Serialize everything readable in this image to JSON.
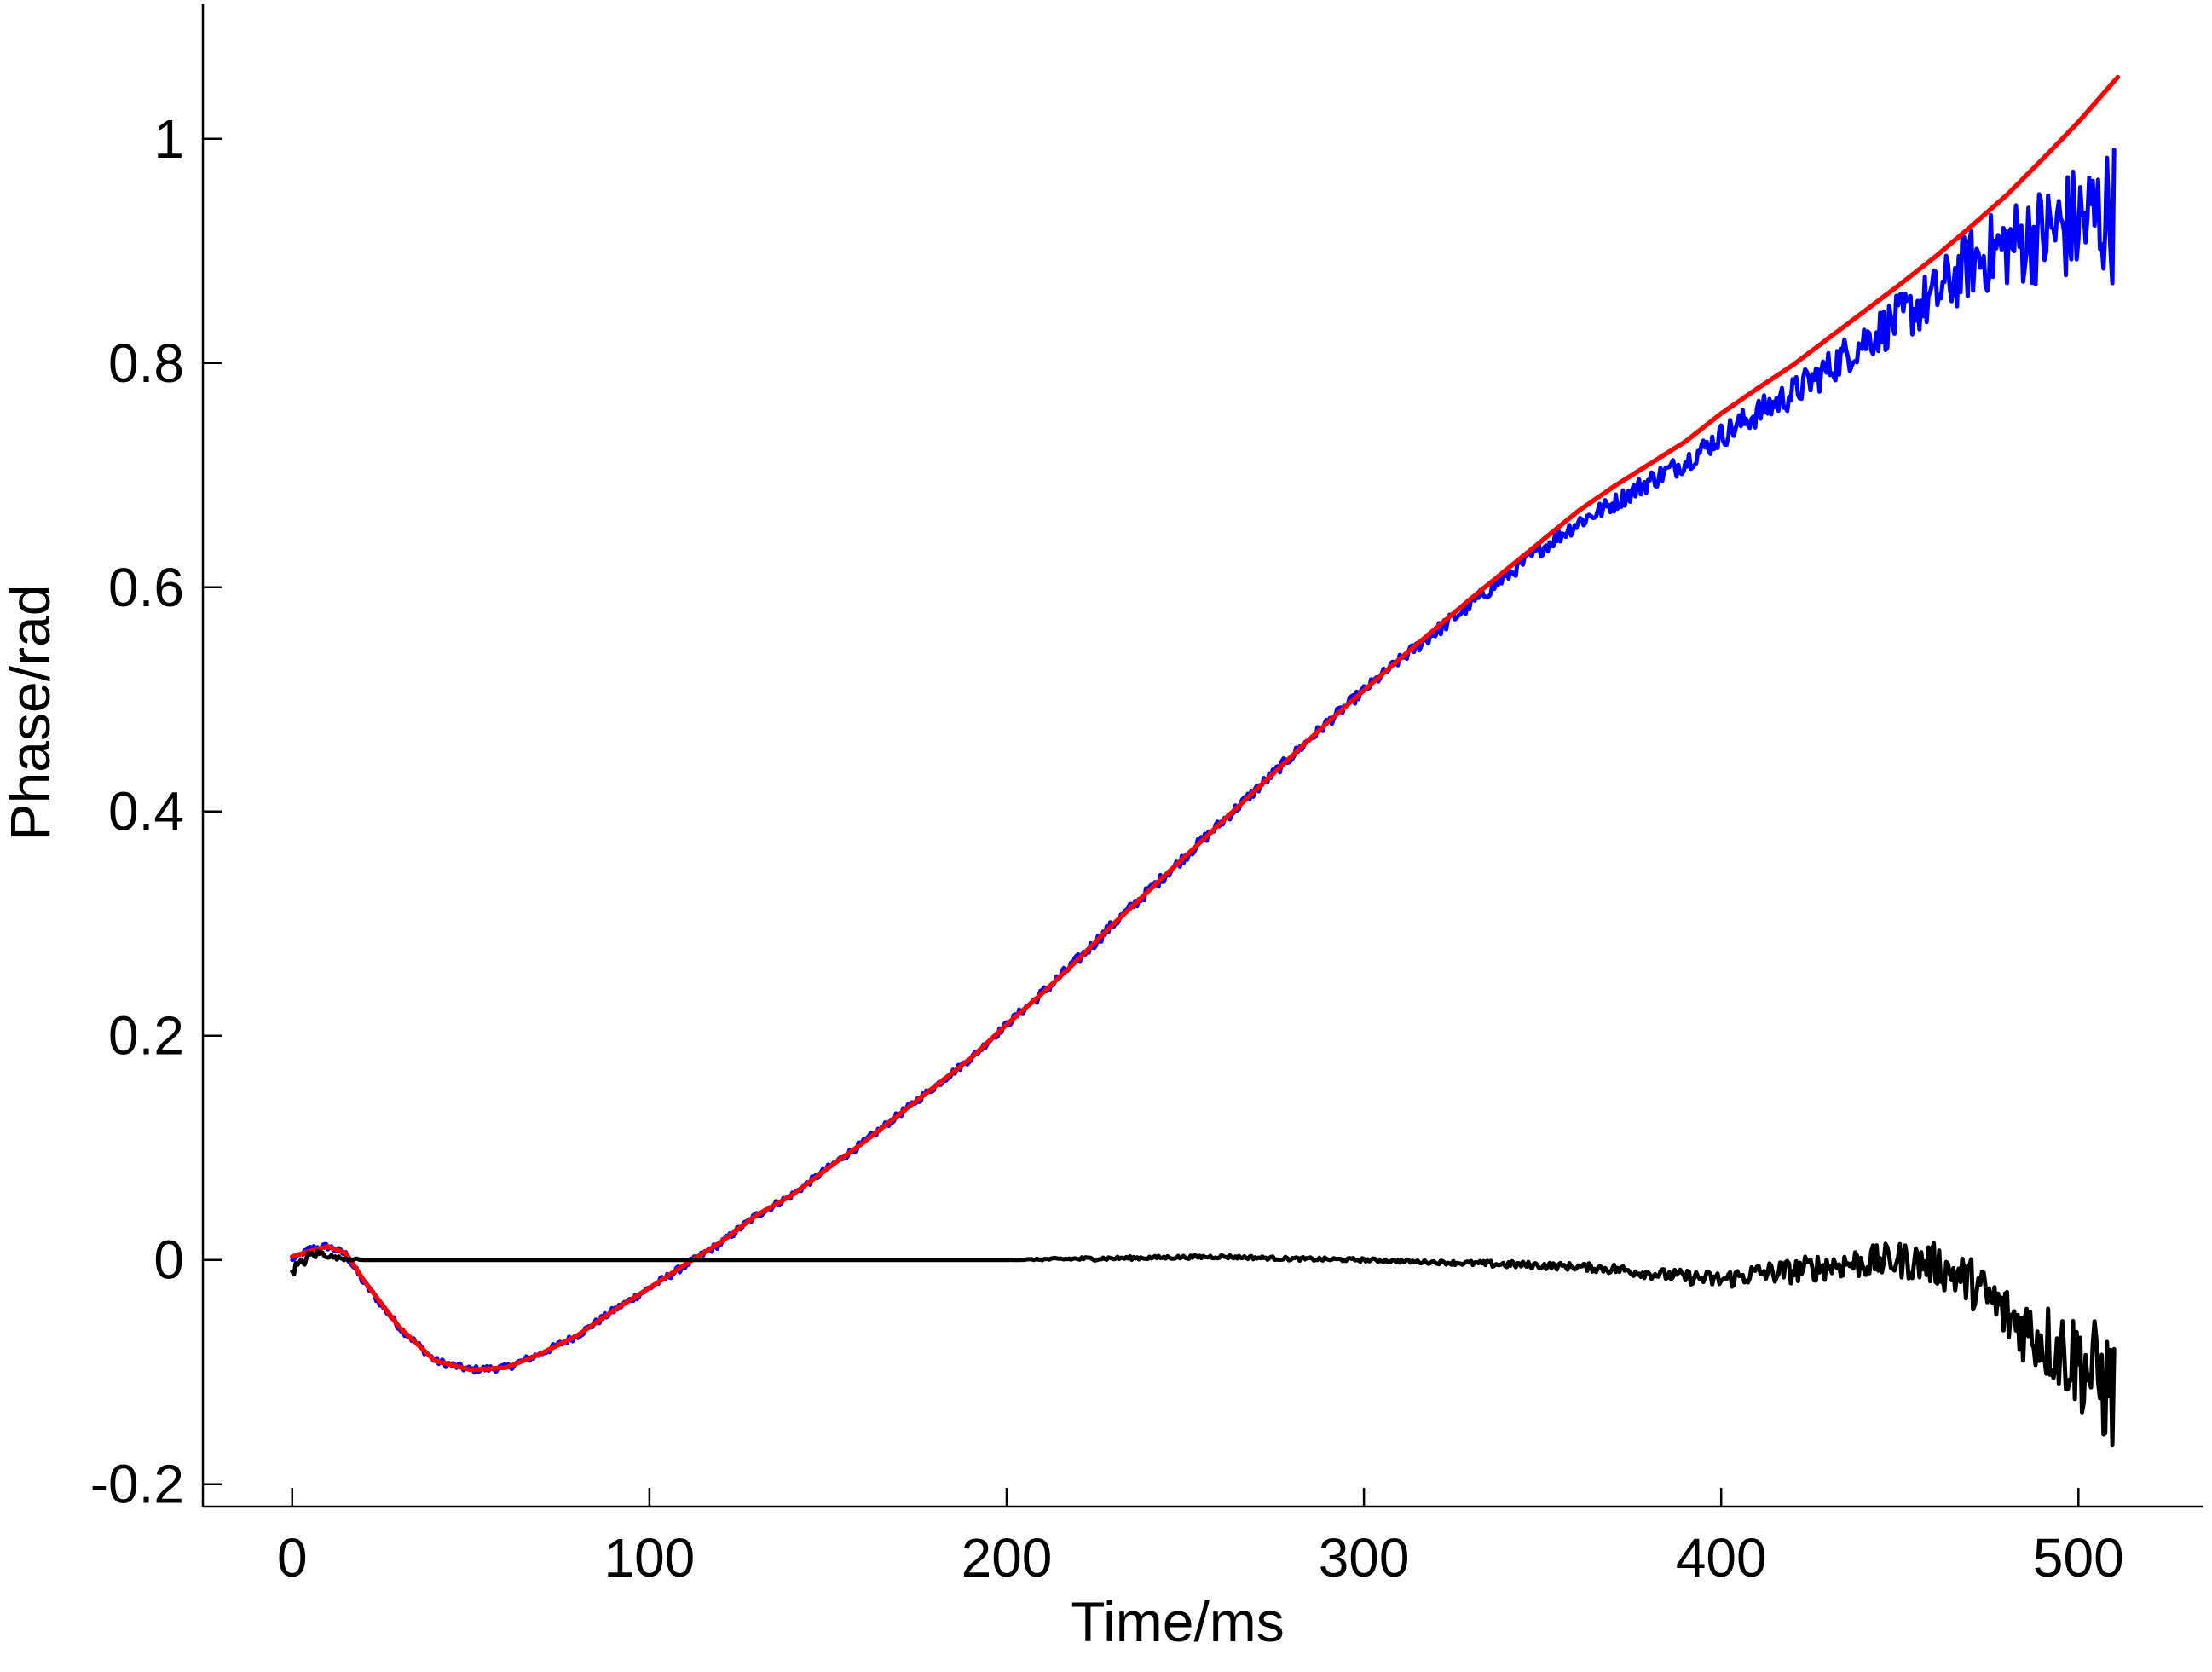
{
  "chart_data": {
    "type": "line",
    "title": "",
    "xlabel": "Time/ms",
    "ylabel": "Phase/rad",
    "xlim": [
      -25,
      535
    ],
    "ylim": [
      -0.22,
      1.12
    ],
    "xticks": [
      0,
      100,
      200,
      300,
      400,
      500
    ],
    "yticks": [
      -0.2,
      0,
      0.2,
      0.4,
      0.6,
      0.8,
      1
    ],
    "xtick_labels": [
      "0",
      "100",
      "200",
      "300",
      "400",
      "500"
    ],
    "ytick_labels": [
      "-0.2",
      "0",
      "0.2",
      "0.4",
      "0.6",
      "0.8",
      "1"
    ],
    "grid": false,
    "legend": "none",
    "series": [
      {
        "color": "#0000ff",
        "description_hidden": true,
        "x": [
          0,
          5,
          10,
          15,
          20,
          30,
          40,
          50,
          60,
          70,
          80,
          90,
          100,
          110,
          120,
          130,
          140,
          150,
          160,
          170,
          180,
          190,
          200,
          210,
          220,
          230,
          240,
          250,
          260,
          270,
          280,
          290,
          300,
          310,
          320,
          330,
          340,
          350,
          360,
          370,
          380,
          390,
          400,
          410,
          420,
          430,
          440,
          450,
          460,
          470,
          480,
          490,
          500,
          510
        ],
        "y": [
          0.0,
          0.01,
          0.012,
          0.005,
          -0.02,
          -0.06,
          -0.09,
          -0.098,
          -0.096,
          -0.083,
          -0.067,
          -0.045,
          -0.025,
          -0.005,
          0.015,
          0.04,
          0.058,
          0.082,
          0.105,
          0.13,
          0.155,
          0.18,
          0.21,
          0.238,
          0.268,
          0.3,
          0.33,
          0.36,
          0.39,
          0.42,
          0.45,
          0.48,
          0.508,
          0.535,
          0.56,
          0.585,
          0.61,
          0.635,
          0.658,
          0.675,
          0.695,
          0.712,
          0.735,
          0.755,
          0.773,
          0.795,
          0.82,
          0.84,
          0.86,
          0.89,
          0.905,
          0.915,
          0.925,
          0.935
        ],
        "noise": [
          0,
          0.002,
          0.002,
          0.002,
          0.002,
          0.002,
          0.002,
          0.002,
          0.002,
          0.002,
          0.002,
          0.002,
          0.002,
          0.002,
          0.002,
          0.002,
          0.002,
          0.002,
          0.002,
          0.002,
          0.002,
          0.002,
          0.002,
          0.003,
          0.003,
          0.003,
          0.003,
          0.003,
          0.003,
          0.003,
          0.003,
          0.003,
          0.003,
          0.003,
          0.004,
          0.004,
          0.004,
          0.004,
          0.005,
          0.005,
          0.006,
          0.006,
          0.007,
          0.008,
          0.009,
          0.01,
          0.012,
          0.014,
          0.017,
          0.02,
          0.024,
          0.028,
          0.034,
          0.04
        ]
      },
      {
        "color": "#ff0000",
        "x": [
          0,
          5,
          10,
          15,
          20,
          30,
          40,
          50,
          60,
          70,
          80,
          90,
          100,
          110,
          120,
          130,
          140,
          150,
          160,
          170,
          180,
          190,
          200,
          210,
          220,
          230,
          240,
          250,
          260,
          270,
          280,
          290,
          300,
          310,
          320,
          330,
          340,
          350,
          360,
          370,
          380,
          390,
          400,
          410,
          420,
          430,
          440,
          450,
          460,
          470,
          480,
          490,
          500,
          511
        ],
        "y": [
          0.003,
          0.008,
          0.012,
          0.006,
          -0.018,
          -0.06,
          -0.09,
          -0.098,
          -0.096,
          -0.083,
          -0.067,
          -0.045,
          -0.025,
          -0.004,
          0.016,
          0.04,
          0.058,
          0.082,
          0.105,
          0.13,
          0.155,
          0.18,
          0.21,
          0.238,
          0.268,
          0.3,
          0.33,
          0.36,
          0.39,
          0.42,
          0.45,
          0.48,
          0.508,
          0.536,
          0.563,
          0.59,
          0.616,
          0.642,
          0.668,
          0.69,
          0.71,
          0.73,
          0.755,
          0.777,
          0.798,
          0.822,
          0.846,
          0.87,
          0.895,
          0.922,
          0.95,
          0.982,
          1.015,
          1.055
        ],
        "noise": []
      },
      {
        "color": "#000000",
        "x": [
          0,
          2,
          5,
          8,
          12,
          16,
          20,
          30,
          50,
          100,
          150,
          200,
          220,
          240,
          260,
          280,
          300,
          320,
          340,
          360,
          370,
          380,
          390,
          400,
          410,
          420,
          430,
          440,
          450,
          460,
          470,
          480,
          490,
          500,
          505,
          510
        ],
        "y": [
          -0.008,
          -0.005,
          0.004,
          0.006,
          0.002,
          0.001,
          0.0,
          0.0,
          0.0,
          0.0,
          0.0,
          0.0,
          0.001,
          0.002,
          0.003,
          0.001,
          0.0,
          -0.002,
          -0.004,
          -0.006,
          -0.008,
          -0.012,
          -0.015,
          -0.018,
          -0.012,
          -0.01,
          -0.005,
          -0.002,
          0.0,
          -0.004,
          -0.02,
          -0.05,
          -0.07,
          -0.09,
          -0.105,
          -0.12
        ],
        "noise": [
          0.004,
          0.003,
          0.003,
          0.002,
          0.001,
          0.001,
          0.0,
          0.0,
          0.0,
          0.0,
          0.0,
          0.0,
          0.001,
          0.001,
          0.001,
          0.001,
          0.001,
          0.001,
          0.002,
          0.002,
          0.003,
          0.003,
          0.004,
          0.005,
          0.006,
          0.007,
          0.008,
          0.009,
          0.01,
          0.012,
          0.014,
          0.018,
          0.022,
          0.028,
          0.032,
          0.036
        ]
      }
    ]
  }
}
